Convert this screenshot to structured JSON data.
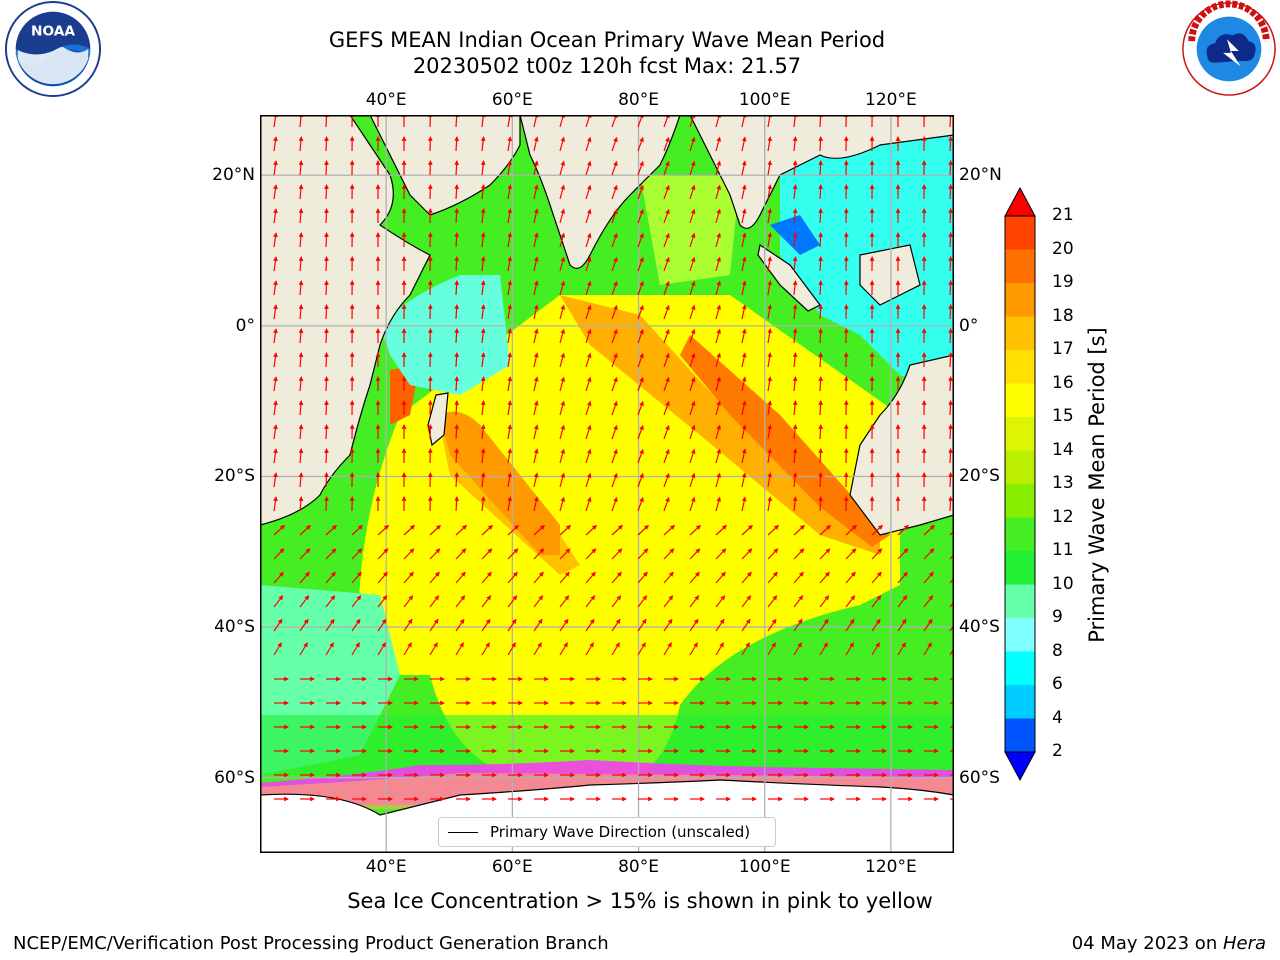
{
  "header": {
    "title_line1": "GEFS MEAN Indian Ocean Primary Wave Mean Period",
    "title_line2": "20230502 t00z 120h fcst   Max: 21.57"
  },
  "logos": {
    "left": {
      "icon": "noaa-logo",
      "text": "NOAA",
      "ring_text": "NATIONAL OCEANIC AND ATMOSPHERIC ADMINISTRATION · U.S. DEPARTMENT OF COMMERCE"
    },
    "right": {
      "icon": "nws-logo",
      "ring_text": "NATIONAL WEATHER SERVICE"
    }
  },
  "map": {
    "lon_labels": [
      "40°E",
      "60°E",
      "80°E",
      "100°E",
      "120°E"
    ],
    "lon_values": [
      40,
      60,
      80,
      100,
      120
    ],
    "lat_labels": [
      "20°N",
      "0°",
      "20°S",
      "40°S",
      "60°S"
    ],
    "lat_values": [
      20,
      0,
      -20,
      -40,
      -60
    ],
    "extent": {
      "lon_min": 20,
      "lon_max": 130,
      "lat_min": -70,
      "lat_max": 28
    },
    "colors": {
      "land": "#efecdc",
      "ice": "#ffffff",
      "arrow": "#ff0000",
      "grid": "#b0b0b0",
      "ice_edge": "#ff33ff"
    },
    "legend_label": "Primary Wave Direction (unscaled)"
  },
  "colorbar": {
    "label": "Primary Wave Mean Period [s]",
    "ticks": [
      "21",
      "20",
      "19",
      "18",
      "17",
      "16",
      "15",
      "14",
      "13",
      "12",
      "11",
      "10",
      "9",
      "8",
      "6",
      "4",
      "2"
    ],
    "levels": [
      2,
      4,
      6,
      8,
      9,
      10,
      11,
      12,
      13,
      14,
      15,
      16,
      17,
      18,
      19,
      20,
      21
    ],
    "colors": [
      "#0055ff",
      "#00ccff",
      "#00ffff",
      "#7fffff",
      "#66ffaa",
      "#22ee33",
      "#44ee22",
      "#88ee00",
      "#bbee00",
      "#ddf500",
      "#ffff00",
      "#ffe000",
      "#ffc000",
      "#ff9900",
      "#ff7000",
      "#ff4400"
    ],
    "under_color": "#0000ff",
    "over_color": "#ff0000"
  },
  "note": "Sea Ice Concentration > 15% is shown in pink to yellow",
  "footer": {
    "left": "NCEP/EMC/Verification Post Processing Product Generation Branch",
    "right_prefix": "04 May 2023 on ",
    "right_host": "Hera"
  }
}
